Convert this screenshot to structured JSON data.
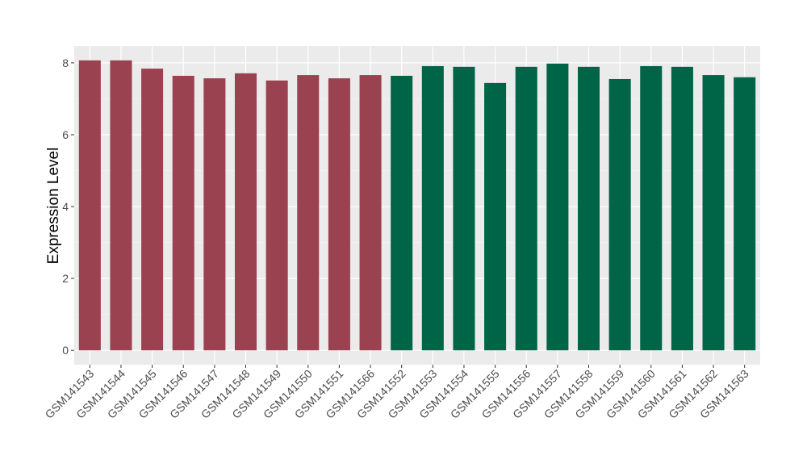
{
  "chart_data": {
    "type": "bar",
    "title": "",
    "xlabel": "",
    "ylabel": "Expression Level",
    "ylim": [
      -0.4,
      8.47
    ],
    "yticks": [
      0,
      2,
      4,
      6,
      8
    ],
    "grid": true,
    "categories": [
      "GSM141543",
      "GSM141544",
      "GSM141545",
      "GSM141546",
      "GSM141547",
      "GSM141548",
      "GSM141549",
      "GSM141550",
      "GSM141551",
      "GSM141566",
      "GSM141552",
      "GSM141553",
      "GSM141554",
      "GSM141555",
      "GSM141556",
      "GSM141557",
      "GSM141558",
      "GSM141559",
      "GSM141560",
      "GSM141561",
      "GSM141562",
      "GSM141563"
    ],
    "values": [
      8.07,
      8.07,
      7.84,
      7.64,
      7.57,
      7.71,
      7.51,
      7.66,
      7.57,
      7.66,
      7.64,
      7.91,
      7.89,
      7.44,
      7.89,
      7.98,
      7.89,
      7.55,
      7.91,
      7.89,
      7.66,
      7.6
    ],
    "bar_colors": [
      "#9b4250",
      "#9b4250",
      "#9b4250",
      "#9b4250",
      "#9b4250",
      "#9b4250",
      "#9b4250",
      "#9b4250",
      "#9b4250",
      "#9b4250",
      "#006446",
      "#006446",
      "#006446",
      "#006446",
      "#006446",
      "#006446",
      "#006446",
      "#006446",
      "#006446",
      "#006446",
      "#006446",
      "#006446"
    ],
    "panel_background": "#ebebeb"
  }
}
